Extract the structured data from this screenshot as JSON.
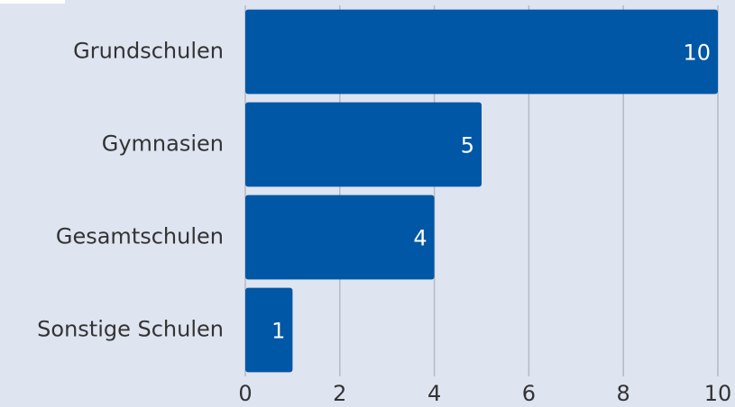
{
  "chart_data": {
    "type": "bar",
    "orientation": "horizontal",
    "categories": [
      "Grundschulen",
      "Gymnasien",
      "Gesamtschulen",
      "Sonstige Schulen"
    ],
    "values": [
      10,
      5,
      4,
      1
    ],
    "color": "#0057a5",
    "xlim": [
      0,
      10
    ],
    "xticks": [
      0,
      2,
      4,
      6,
      8,
      10
    ],
    "grid": true
  }
}
